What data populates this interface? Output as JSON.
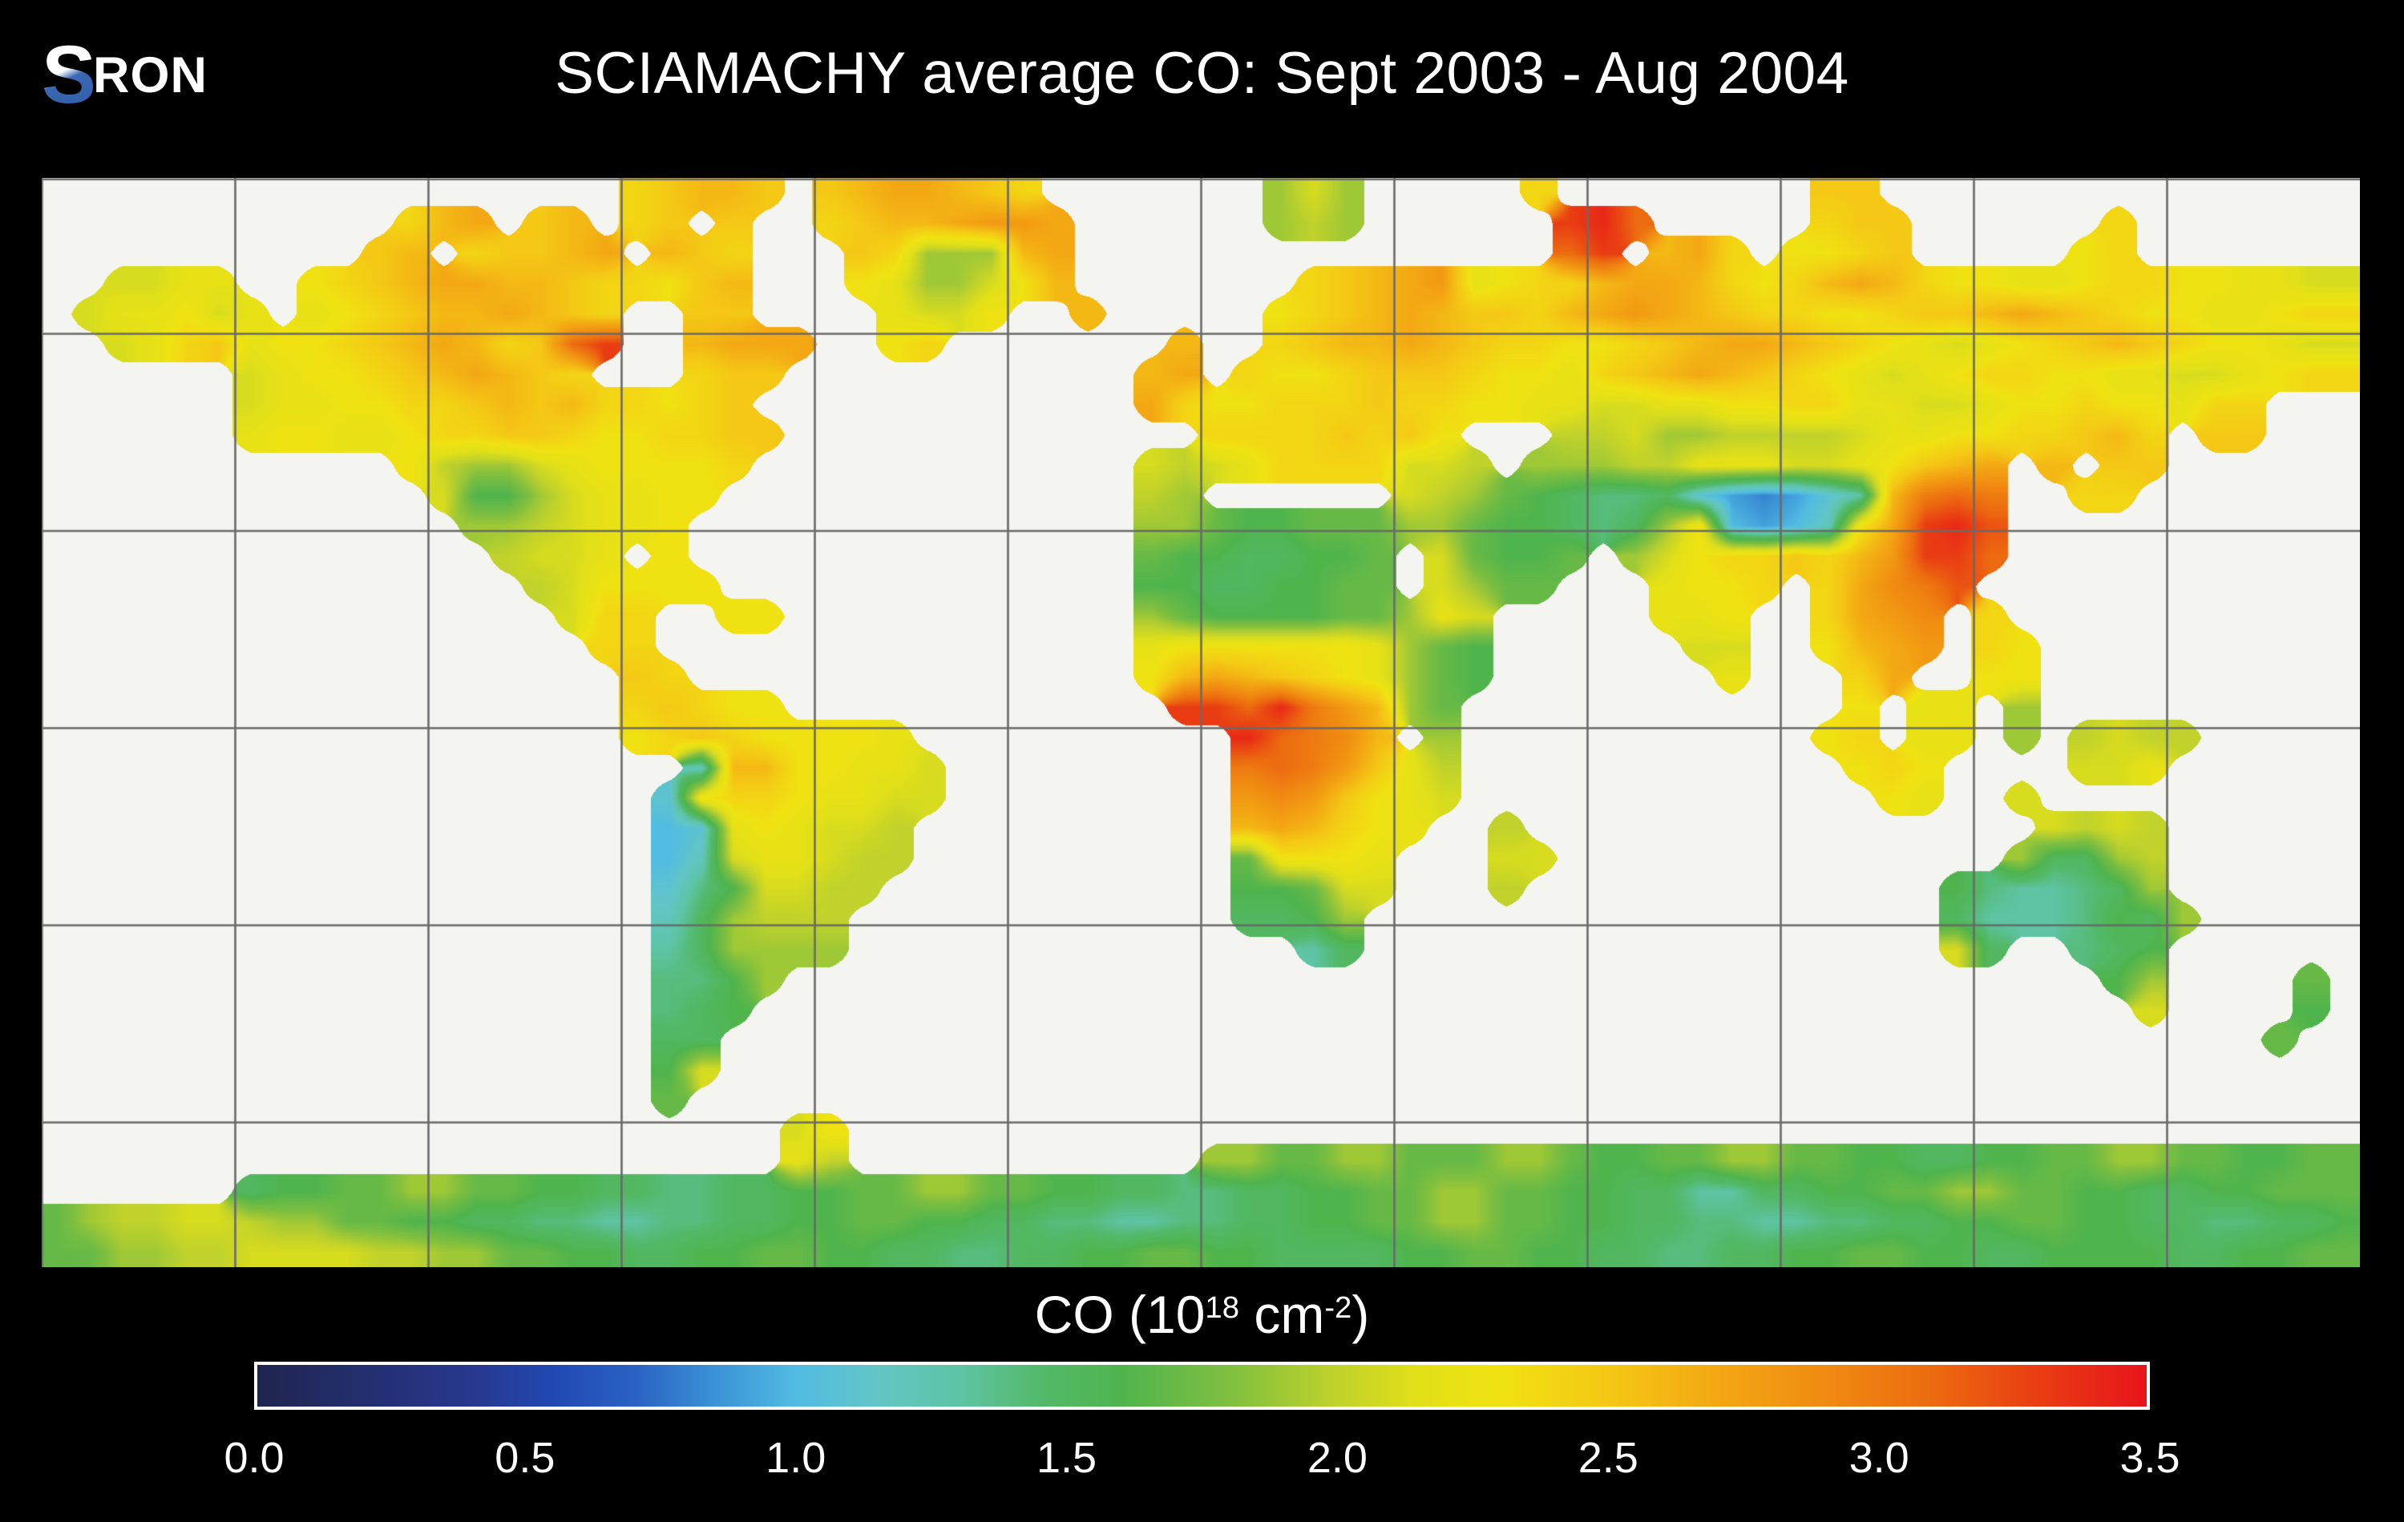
{
  "header": {
    "title": "SCIAMACHY average CO: Sept 2003 - Aug 2004"
  },
  "logo": {
    "s": "S",
    "ron": "RON",
    "s_color_top": "#ffffff",
    "s_color_bottom": "#3a68b2"
  },
  "colorbar": {
    "units_prefix": "CO (10",
    "units_sup1": "18",
    "units_mid": " cm",
    "units_sup2": "-2",
    "units_suffix": ")",
    "ticks": [
      "0.0",
      "0.5",
      "1.0",
      "1.5",
      "2.0",
      "2.5",
      "3.0",
      "3.5"
    ],
    "min": 0.0,
    "max": 3.5,
    "border_color": "#ffffff"
  },
  "colors": {
    "page_bg": "#000000",
    "map_bg": "#f4f4f1",
    "grid_line": "#6a6a6a",
    "text": "#ffffff"
  },
  "chart_data": {
    "type": "heatmap",
    "title": "SCIAMACHY average CO: Sept 2003 - Aug 2004",
    "variable": "CO column",
    "units": "10^18 cm^-2",
    "value_range": [
      0.0,
      3.5
    ],
    "colorbar_ticks": [
      0.0,
      0.5,
      1.0,
      1.5,
      2.0,
      2.5,
      3.0,
      3.5
    ],
    "projection": "equirectangular",
    "lon_range": [
      -180,
      180
    ],
    "lat_range": [
      -82,
      84
    ],
    "gridline_spacing_deg": 30,
    "grid_on": true,
    "legend_position": "bottom",
    "no_data_char": ".",
    "cell_encoding": "base36 char / 10 = CO value (e.g. 'k'=2.0, 'z'=3.5); '.' = no data (ocean)",
    "grid_cols": 72,
    "grid_rows_count": 36,
    "colormap_stops": [
      [
        0.0,
        "#20254f"
      ],
      [
        0.4,
        "#27388f"
      ],
      [
        0.55,
        "#2148b2"
      ],
      [
        0.7,
        "#2a62c4"
      ],
      [
        0.85,
        "#3b93d6"
      ],
      [
        1.0,
        "#52bce2"
      ],
      [
        1.15,
        "#62c5c6"
      ],
      [
        1.3,
        "#5ec4a5"
      ],
      [
        1.45,
        "#53b96a"
      ],
      [
        1.6,
        "#4fb44d"
      ],
      [
        1.8,
        "#7fbf40"
      ],
      [
        2.0,
        "#c0d22b"
      ],
      [
        2.15,
        "#e2e018"
      ],
      [
        2.3,
        "#f0e212"
      ],
      [
        2.5,
        "#f4c815"
      ],
      [
        2.7,
        "#f3a813"
      ],
      [
        2.9,
        "#f08b11"
      ],
      [
        3.1,
        "#ec6b10"
      ],
      [
        3.3,
        "#e93c13"
      ],
      [
        3.5,
        "#e8141c"
      ]
    ],
    "grid_rows": [
      "..................opqqp.pqrrqpo.......jlj.....o........pp...............",
      "...........oqr.pq.op.p..opqqrssr......jkj......xyv.....opp......o.......",
      "..........pq.oppqr.qpo...pojjjqr...............vx.qro.nnop.....no.......",
      "..llmm..nopqrrqqpoonpq...nmjjlnq.......opqrsmnooqrrqonoqrqonnmmnoonnmmll",
      ".lmmnlm.mnopqqrqpo..pp....mlln..q.....nopqrqppoqrsrqpoonnoppqrqponnmmnoo",
      "..lmopmnnopqrqopvx..qrrr..no.......q..opqqrqpoonnopqrrqponmlmnopqponnmll",
      "......lmnnopqrqpo...opp...........qr.onnoppponnmopqrqponmlmnoonnmmllmnoo",
      "......lmmnnoopqpqoonop............ronnooopoonnmmllmmnnoommllmnnonnmoo..",
      "......mnnmmnoopponnoopp.............oooopopn...kkljjkkkklmmnnoopqo.pp...",
      "...........nkjjlmnnnno............lklmoooollk.jjjkkmmmllmnpqr.q.pp......",
      "............lggjlmmnn.............kj......lkjhgfeefb989bdquvu..oo.......",
      ".............jjklmmn..............jjhgghhhjjhggfefjna9acnrxyw...........",
      "..............kllm.n..............hggffggh.lhggh.jlnoopoqsxxv..........",
      "...............klnnnn.............ggffgghh.ljhh...mnno.ortuw...........",
      "................loo..nn...........jhgggghhjml.....mmn..orst.o..........",
      ".................oo...............mnnnnnnmjhg......ll..nqrs.on.........",
      "..................po..............nqrqponmjhg.......m...or..nn.........",
      "..................oponn............xxvyusqjh............n.mm.j.........",
      "..................noponnnnm..........yvutq.j...........no.mm.j.klkk....",
      "....................cqqnnmml.........uvuspmk............non....llm......",
      "...................bnoonmmll.........stspnml.............nm..l..........",
      "...................abmnmllk..........qrqonm..k................lklk......",
      "...................aclmmlkk..........hnnnm...ll..............jffjk......",
      "...................begllkk...........gghll...k.............geddefj......",
      "...................cfjkkk............ffgj..................fdddegfj.....",
      "...................dfjjjj..............df..................lf..efg......",
      "...................eegj.........................................gj....h.",
      "...................efg...........................................l....g.",
      "...................ff................................................h..",
      "...................gl...................................................",
      "...................h....................................................",
      ".......................ln...............................................",
      ".......................mk...........jjhhjjhhhjjhgghhjjhhggffgghhjjhhgghh",
      "......fgghhjjhhggffeeffgghhjjhhggffeeffgghhjjhhggffddffgghhjjhhggffgghhh",
      "hjkkllkjjhhggffeeddeeffgghhggffeeddeeffgghhjjhhggffeeddeeffgghhggffeeffg",
      "hhjjkkllllkkjjhhggffgghhggffeeffgghhggffffgghhggffeeffgghhggffggggffgghh"
    ]
  }
}
